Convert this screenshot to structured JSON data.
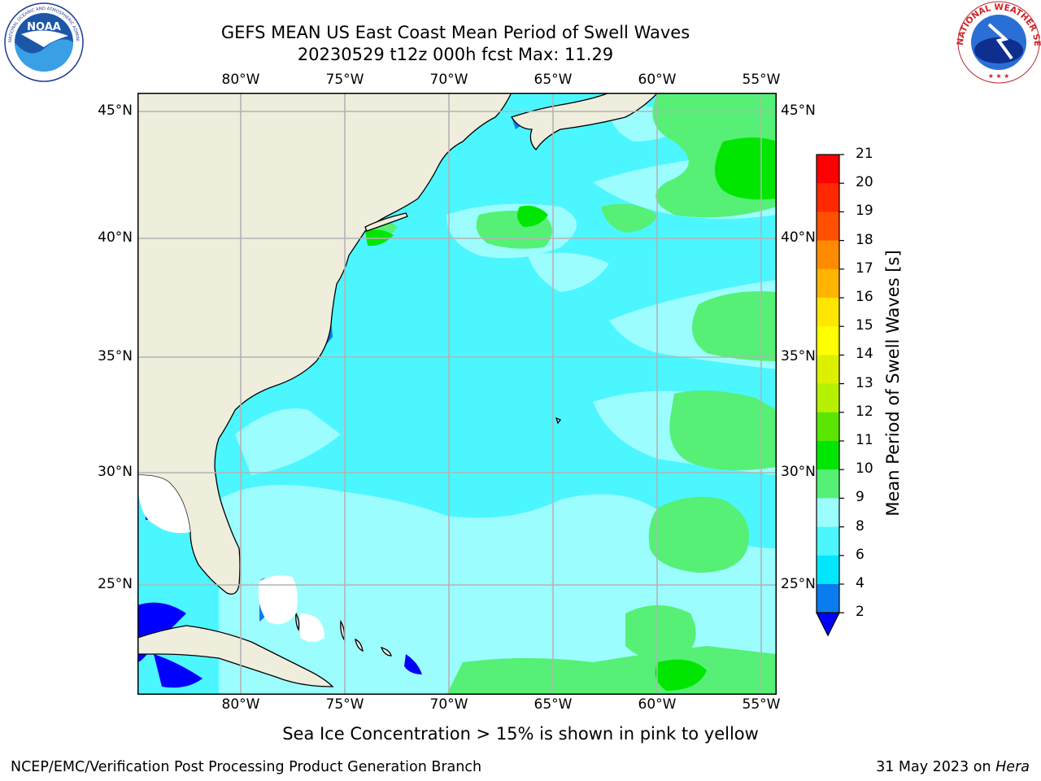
{
  "header": {
    "title": "GEFS MEAN US East Coast Mean Period of Swell Waves",
    "subtitle": "20230529 t12z 000h fcst   Max: 11.29"
  },
  "logos": {
    "left": "NOAA",
    "right": "NATIONAL WEATHER SERVICE"
  },
  "map": {
    "lon_labels": [
      "80°W",
      "75°W",
      "70°W",
      "65°W",
      "60°W",
      "55°W"
    ],
    "lat_labels": [
      "45°N",
      "40°N",
      "35°N",
      "30°N",
      "25°N"
    ]
  },
  "colorbar": {
    "title": "Mean Period of Swell Waves [s]",
    "ticks": [
      "21",
      "20",
      "19",
      "18",
      "17",
      "16",
      "15",
      "14",
      "13",
      "12",
      "11",
      "10",
      "9",
      "8",
      "6",
      "4",
      "2"
    ],
    "colors": {
      "2-4": "#0a7cf0",
      "4-6": "#00e6ff",
      "6-8": "#4cf6ff",
      "8-9": "#9cfdff",
      "9-10": "#55f075",
      "10-11": "#00e600",
      "11-12": "#5ae600",
      "12-13": "#b4f000",
      "13-14": "#dcf000",
      "14-15": "#ffff00",
      "15-16": "#ffe600",
      "16-17": "#ffb400",
      "17-18": "#ff8c00",
      "18-19": "#ff5000",
      "19-20": "#ff2800",
      "20-21": "#ff0000",
      "under": "#0000ff"
    }
  },
  "footnote": "Sea Ice Concentration > 15% is shown in pink to yellow",
  "footer": {
    "left": "NCEP/EMC/Verification Post Processing Product Generation Branch",
    "date": "31 May 2023 on",
    "machine": "Hera"
  }
}
